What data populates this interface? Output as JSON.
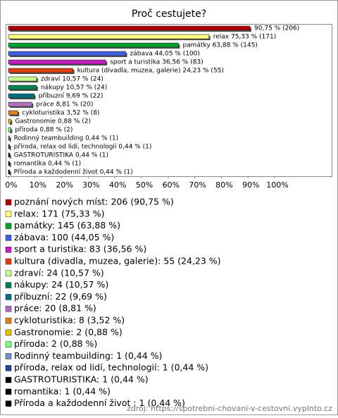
{
  "chart_data": {
    "type": "bar",
    "orientation": "horizontal",
    "title": "Proč cestujete?",
    "categories": [
      "poznání nových míst",
      "relax",
      "památky",
      "zábava",
      "sport a turistika",
      "kultura (divadla, muzea, galerie)",
      "zdraví",
      "nákupy",
      "příbuzní",
      "práce",
      "cykloturistika",
      "Gastronomie",
      "příroda",
      "Rodinný teambuilding",
      "příroda, relax od lidí, technologií",
      "GASTROTURISTIKA",
      "romantika",
      "Příroda a každodenní život "
    ],
    "values": [
      90.75,
      75.33,
      63.88,
      44.05,
      36.56,
      24.23,
      10.57,
      10.57,
      9.69,
      8.81,
      3.52,
      0.88,
      0.88,
      0.44,
      0.44,
      0.44,
      0.44,
      0.44
    ],
    "value_labels": [
      "90,75 % (206)",
      "relax 75,33 % (171)",
      "památky 63,88 % (145)",
      "zábava 44,05 % (100)",
      "sport a turistika 36,56 % (83)",
      "kultura (divadla, muzea, galerie) 24,23 % (55)",
      "zdraví 10,57 % (24)",
      "nákupy 10,57 % (24)",
      "příbuzní 9,69 % (22)",
      "práce 8,81 % (20)",
      "cykloturistika 3,52 % (8)",
      "Gastronomie 0,88 % (2)",
      "příroda 0,88 % (2)",
      "Rodinný teambuilding 0,44 % (1)",
      "příroda, relax od lidí, technologií 0,44 % (1)",
      "GASTROTURISTIKA 0,44 % (1)",
      "romantika 0,44 % (1)",
      "Příroda a každodenní život  0,44 % (1)"
    ],
    "legend_labels": [
      "poznání nových míst: 206 (90,75 %)",
      "relax: 171 (75,33 %)",
      "památky: 145 (63,88 %)",
      "zábava: 100 (44,05 %)",
      "sport a turistika: 83 (36,56 %)",
      "kultura (divadla, muzea, galerie): 55 (24,23 %)",
      "zdraví: 24 (10,57 %)",
      "nákupy: 24 (10,57 %)",
      "příbuzní: 22 (9,69 %)",
      "práce: 20 (8,81 %)",
      "cykloturistika: 8 (3,52 %)",
      "Gastronomie: 2 (0,88 %)",
      "příroda: 2 (0,88 %)",
      "Rodinný teambuilding: 1 (0,44 %)",
      "příroda, relax od lidí, technologií: 1 (0,44 %)",
      "GASTROTURISTIKA: 1 (0,44 %)",
      "romantika: 1 (0,44 %)",
      "Příroda a každodenní život : 1 (0,44 %)"
    ],
    "colors": [
      "#b00000",
      "#ffff80",
      "#00a030",
      "#4060e0",
      "#c020c0",
      "#e04010",
      "#c8ff90",
      "#008050",
      "#007080",
      "#b070c0",
      "#e08020",
      "#e0c000",
      "#80ff80",
      "#7090c8",
      "#204890",
      "#000000",
      "#000000",
      "#000000"
    ],
    "xlim": [
      0,
      100
    ],
    "xticks": [
      {
        "value": 0,
        "label": "0%"
      },
      {
        "value": 10,
        "label": "10%"
      },
      {
        "value": 20,
        "label": "20%"
      },
      {
        "value": 30,
        "label": "30%"
      },
      {
        "value": 40,
        "label": "40%"
      },
      {
        "value": 50,
        "label": "50%"
      },
      {
        "value": 60,
        "label": "60%"
      },
      {
        "value": 70,
        "label": "70%"
      },
      {
        "value": 80,
        "label": "80%"
      },
      {
        "value": 90,
        "label": "90%"
      },
      {
        "value": 100,
        "label": "100%"
      }
    ],
    "grid": false,
    "source": "zdroj: https://spotrebni-chovani-v-cestovni.vyplnto.cz"
  }
}
